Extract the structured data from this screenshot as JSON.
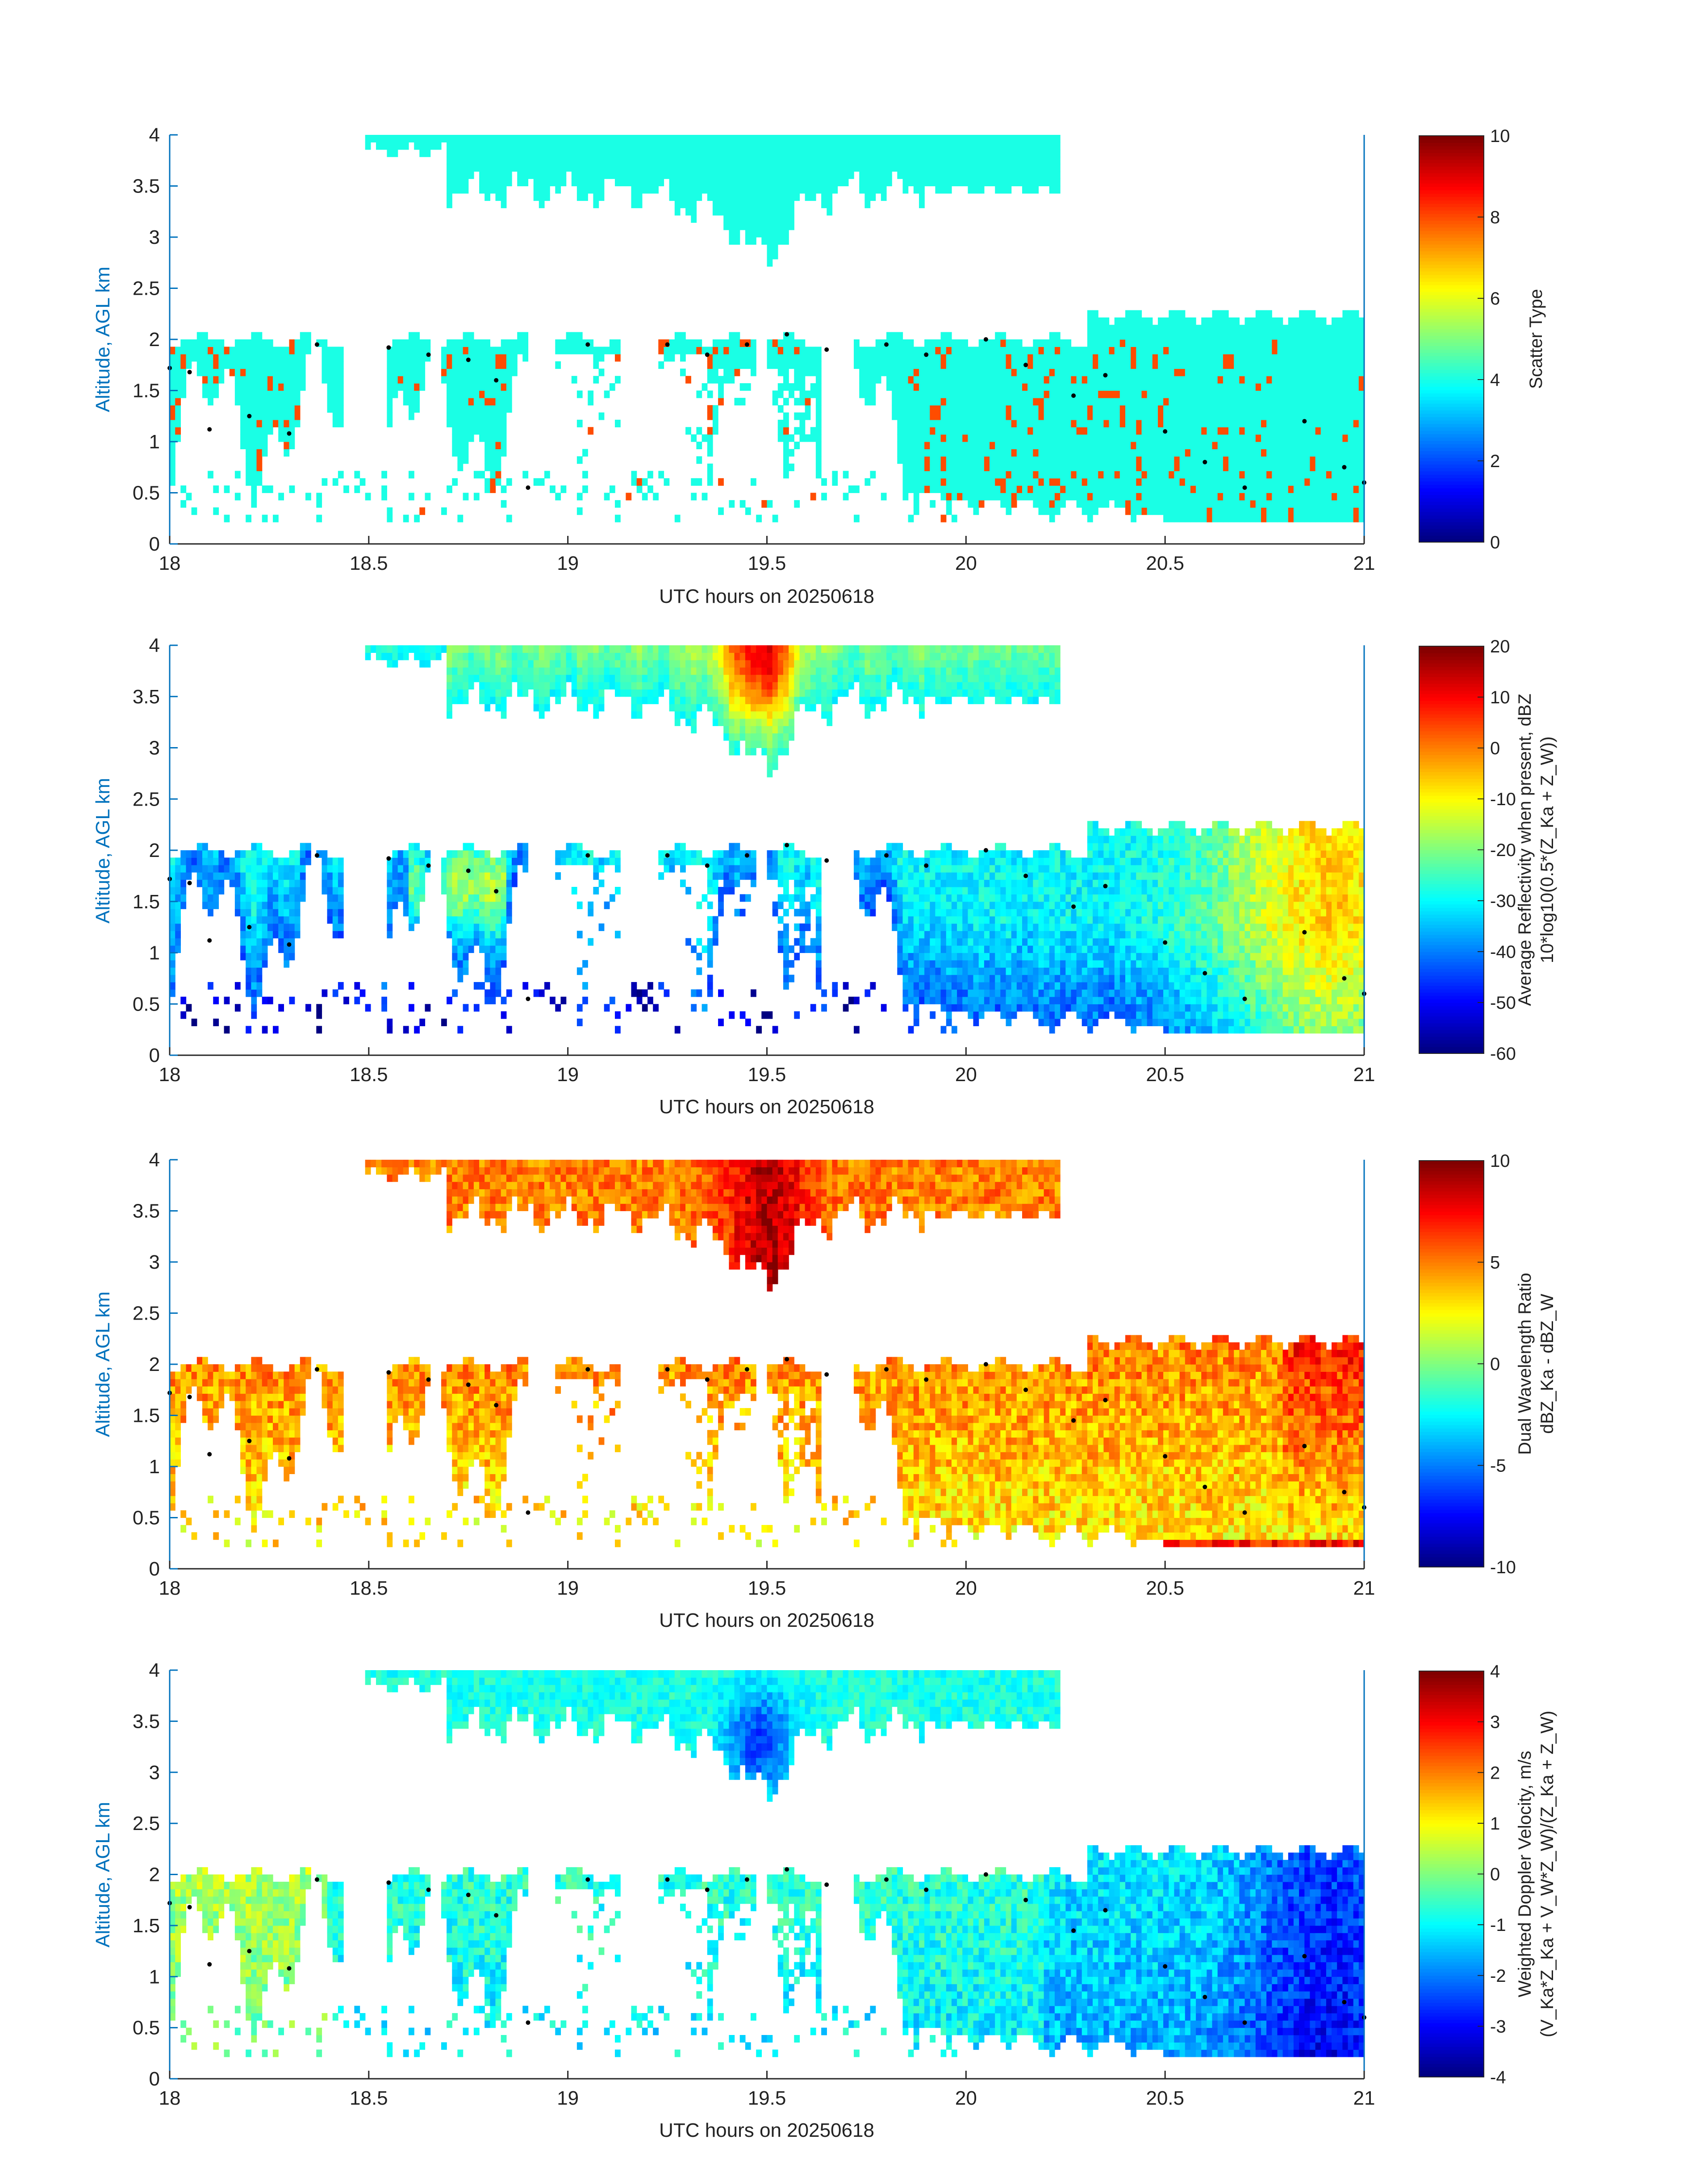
{
  "figure": {
    "background": "#ffffff",
    "axis_color": "#0072BD",
    "point_color": "#000000"
  },
  "chart_data": [
    {
      "type": "heatmap",
      "id": "scatter-type",
      "xlabel": "UTC hours on 20250618",
      "ylabel": "Altitude, AGL km",
      "xlim": [
        18,
        21
      ],
      "ylim": [
        0,
        4
      ],
      "xticks": [
        "18",
        "18.5",
        "19",
        "19.5",
        "20",
        "20.5",
        "21"
      ],
      "yticks": [
        "0",
        "0.5",
        "1",
        "1.5",
        "2",
        "2.5",
        "3",
        "3.5",
        "4"
      ],
      "colorbar": {
        "label_lines": [
          "Scatter Type"
        ],
        "ticks": [
          "0",
          "2",
          "4",
          "6",
          "8",
          "10"
        ],
        "range": [
          0,
          10
        ],
        "colormap": "jet"
      },
      "fields": {
        "upper_layer": {
          "value": 4,
          "x_range": [
            18.48,
            20.23
          ],
          "alt_top": 4.0,
          "alt_base_mean": 3.6,
          "alt_base_min": 2.95
        },
        "lower_layer": {
          "value": 4,
          "x_range": [
            18.0,
            21.0
          ],
          "alt_top": 2.2,
          "alt_base_mean": 0.9
        },
        "secondary_value": 8
      },
      "overlay_points_km": [
        [
          18.0,
          1.72
        ],
        [
          18.05,
          1.68
        ],
        [
          18.1,
          1.12
        ],
        [
          18.2,
          1.25
        ],
        [
          18.3,
          1.08
        ],
        [
          18.37,
          1.95
        ],
        [
          18.55,
          1.92
        ],
        [
          18.65,
          1.85
        ],
        [
          18.75,
          1.8
        ],
        [
          18.82,
          1.6
        ],
        [
          18.9,
          0.55
        ],
        [
          19.05,
          1.95
        ],
        [
          19.25,
          1.95
        ],
        [
          19.35,
          1.85
        ],
        [
          19.45,
          1.95
        ],
        [
          19.55,
          2.05
        ],
        [
          19.65,
          1.9
        ],
        [
          19.8,
          1.95
        ],
        [
          19.9,
          1.85
        ],
        [
          20.05,
          2.0
        ],
        [
          20.15,
          1.75
        ],
        [
          20.27,
          1.45
        ],
        [
          20.35,
          1.65
        ],
        [
          20.5,
          1.1
        ],
        [
          20.6,
          0.8
        ],
        [
          20.7,
          0.55
        ],
        [
          20.85,
          1.2
        ],
        [
          20.95,
          0.75
        ],
        [
          21.0,
          0.6
        ]
      ]
    },
    {
      "type": "heatmap",
      "id": "reflectivity",
      "xlabel": "UTC hours on 20250618",
      "ylabel": "Altitude, AGL km",
      "xlim": [
        18,
        21
      ],
      "ylim": [
        0,
        4
      ],
      "xticks": [
        "18",
        "18.5",
        "19",
        "19.5",
        "20",
        "20.5",
        "21"
      ],
      "yticks": [
        "0",
        "0.5",
        "1",
        "1.5",
        "2",
        "2.5",
        "3",
        "3.5",
        "4"
      ],
      "colorbar": {
        "label_lines": [
          "Average Reflectivity when present, dBZ",
          "10*log10(0.5*(Z_Ka + Z_W))"
        ],
        "ticks": [
          "-60",
          "-50",
          "-40",
          "-30",
          "-20",
          "-10",
          "0",
          "10",
          "20"
        ],
        "range": [
          -60,
          20
        ],
        "colormap": "jet"
      },
      "fields": {
        "upper_layer": {
          "value_mean": -22,
          "peak": 5,
          "peak_x": 19.48
        },
        "lower_layer": {
          "value_mean": -30,
          "peak": 3,
          "peak_x": 20.9
        }
      }
    },
    {
      "type": "heatmap",
      "id": "dual-wavelength-ratio",
      "xlabel": "UTC hours on 20250618",
      "ylabel": "Altitude, AGL km",
      "xlim": [
        18,
        21
      ],
      "ylim": [
        0,
        4
      ],
      "xticks": [
        "18",
        "18.5",
        "19",
        "19.5",
        "20",
        "20.5",
        "21"
      ],
      "yticks": [
        "0",
        "0.5",
        "1",
        "1.5",
        "2",
        "2.5",
        "3",
        "3.5",
        "4"
      ],
      "colorbar": {
        "label_lines": [
          "Dual Wavelength Ratio",
          "dBZ_Ka - dBZ_W"
        ],
        "ticks": [
          "-10",
          "-5",
          "0",
          "5",
          "10"
        ],
        "range": [
          -10,
          10
        ],
        "colormap": "jet"
      },
      "fields": {
        "upper_layer": {
          "value_mean": 5.5,
          "peak": 9
        },
        "lower_layer": {
          "value_mean": 2.5,
          "peak": 8
        }
      }
    },
    {
      "type": "heatmap",
      "id": "doppler-velocity",
      "xlabel": "UTC hours on 20250618",
      "ylabel": "Altitude, AGL km",
      "xlim": [
        18,
        21
      ],
      "ylim": [
        0,
        4
      ],
      "xticks": [
        "18",
        "18.5",
        "19",
        "19.5",
        "20",
        "20.5",
        "21"
      ],
      "yticks": [
        "0",
        "0.5",
        "1",
        "1.5",
        "2",
        "2.5",
        "3",
        "3.5",
        "4"
      ],
      "colorbar": {
        "label_lines": [
          "Weighted Doppler Velocity, m/s",
          "(V_Ka*Z_Ka + V_W*Z_W)/(Z_Ka + Z_W)"
        ],
        "ticks": [
          "-4",
          "-3",
          "-2",
          "-1",
          "0",
          "1",
          "2",
          "3",
          "4"
        ],
        "range": [
          -4,
          4
        ],
        "colormap": "jet"
      },
      "fields": {
        "upper_layer": {
          "value_mean": -1.0,
          "min": -2.8
        },
        "lower_layer": {
          "value_mean": -1.1,
          "min": -2.6
        }
      }
    }
  ]
}
